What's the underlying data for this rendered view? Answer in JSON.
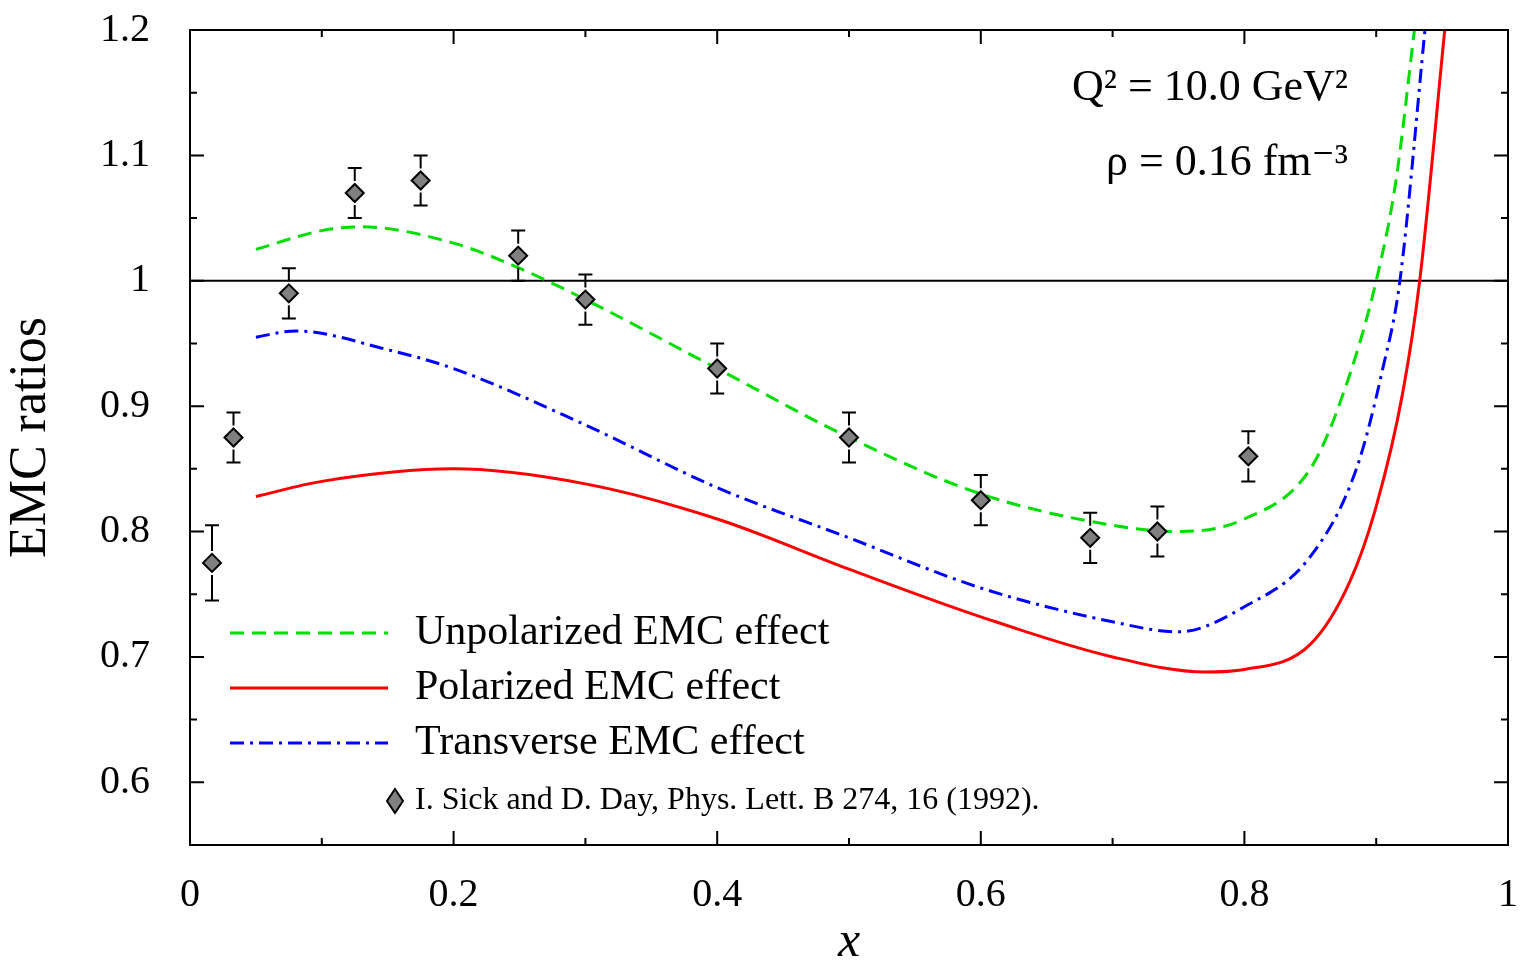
{
  "chart_data": {
    "type": "line",
    "xlabel": "x",
    "ylabel": "EMC ratios",
    "annotations": [
      "Q² = 10.0 GeV²",
      "ρ = 0.16 fm⁻³"
    ],
    "xlim": [
      0,
      1
    ],
    "ylim": [
      0.55,
      1.2
    ],
    "xticks": [
      0,
      {
        "value": 0.1,
        "label": null
      },
      0.2,
      {
        "value": 0.3,
        "label": null
      },
      0.4,
      {
        "value": 0.5,
        "label": null
      },
      0.6,
      {
        "value": 0.7,
        "label": null
      },
      0.8,
      {
        "value": 0.9,
        "label": null
      },
      1
    ],
    "yticks": [
      0.6,
      {
        "value": 0.65,
        "label": null
      },
      0.7,
      {
        "value": 0.75,
        "label": null
      },
      0.8,
      {
        "value": 0.85,
        "label": null
      },
      0.9,
      {
        "value": 0.95,
        "label": null
      },
      1,
      {
        "value": 1.05,
        "label": null
      },
      1.1,
      {
        "value": 1.15,
        "label": null
      },
      1.2
    ],
    "grid": false,
    "legend": "bottom left",
    "ref_lines": [
      {
        "axis": "y",
        "value": 1,
        "color": "#000000"
      }
    ],
    "series": [
      {
        "name": "Unpolarized EMC effect",
        "color": "#00dd00",
        "line_style": "dashed",
        "marker": "none",
        "x": [
          0.05,
          0.1,
          0.13,
          0.2,
          0.25,
          0.3,
          0.4,
          0.5,
          0.6,
          0.7,
          0.75,
          0.8,
          0.85,
          0.875,
          0.9,
          0.915,
          0.929
        ],
        "values": [
          1.025,
          1.04,
          1.043,
          1.03,
          1.01,
          0.985,
          0.93,
          0.875,
          0.83,
          0.805,
          0.8,
          0.81,
          0.85,
          0.91,
          1.0,
          1.08,
          1.2
        ]
      },
      {
        "name": "Polarized EMC effect",
        "color": "#ff0000",
        "line_style": "solid",
        "marker": "none",
        "x": [
          0.05,
          0.1,
          0.2,
          0.3,
          0.4,
          0.5,
          0.6,
          0.7,
          0.77,
          0.8,
          0.85,
          0.88,
          0.9,
          0.92,
          0.933,
          0.952
        ],
        "values": [
          0.828,
          0.84,
          0.85,
          0.838,
          0.81,
          0.77,
          0.732,
          0.7,
          0.688,
          0.69,
          0.71,
          0.76,
          0.82,
          0.91,
          1.0,
          1.2
        ]
      },
      {
        "name": "Transverse EMC effect",
        "color": "#0000ff",
        "line_style": "dashdot",
        "marker": "none",
        "x": [
          0.05,
          0.08,
          0.15,
          0.2,
          0.3,
          0.4,
          0.5,
          0.6,
          0.7,
          0.75,
          0.8,
          0.85,
          0.885,
          0.905,
          0.918,
          0.937
        ],
        "values": [
          0.955,
          0.96,
          0.945,
          0.93,
          0.885,
          0.835,
          0.795,
          0.755,
          0.728,
          0.72,
          0.74,
          0.78,
          0.85,
          0.93,
          1.0,
          1.2
        ]
      },
      {
        "name": "I. Sick and D. Day, Phys. Lett. B 274, 16 (1992).",
        "type": "scatter",
        "color": "#808080",
        "marker": "diamond",
        "x": [
          0.0167,
          0.033,
          0.075,
          0.125,
          0.175,
          0.249,
          0.3,
          0.4,
          0.5,
          0.6,
          0.683,
          0.734,
          0.803
        ],
        "values": [
          0.775,
          0.875,
          0.99,
          1.07,
          1.08,
          1.02,
          0.985,
          0.93,
          0.875,
          0.825,
          0.795,
          0.8,
          0.86
        ],
        "errors": [
          0.03,
          0.02,
          0.02,
          0.02,
          0.02,
          0.02,
          0.02,
          0.02,
          0.02,
          0.02,
          0.02,
          0.02,
          0.02
        ]
      }
    ]
  }
}
